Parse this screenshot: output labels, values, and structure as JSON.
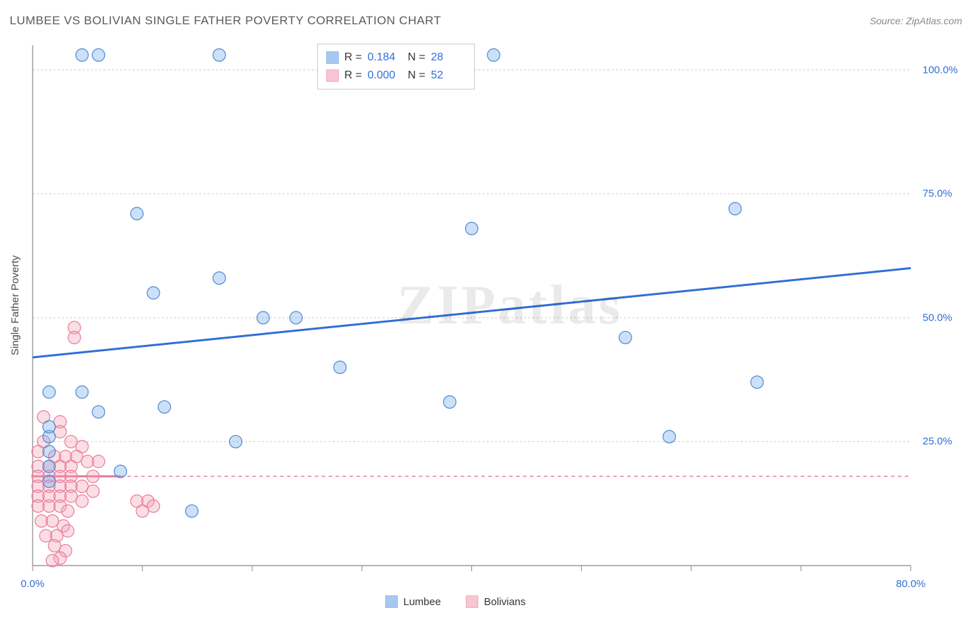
{
  "title": "LUMBEE VS BOLIVIAN SINGLE FATHER POVERTY CORRELATION CHART",
  "source_label": "Source: ZipAtlas.com",
  "y_axis_label": "Single Father Poverty",
  "watermark": "ZIPatlas",
  "chart": {
    "type": "scatter",
    "background_color": "#ffffff",
    "grid_color": "#cccccc",
    "grid_dash": "3,3",
    "axis_color": "#888888",
    "tick_color": "#888888",
    "xlim": [
      0,
      80
    ],
    "ylim": [
      0,
      105
    ],
    "x_ticks": [
      0,
      10,
      20,
      30,
      40,
      50,
      60,
      70,
      80
    ],
    "x_tick_labels": {
      "0": "0.0%",
      "80": "80.0%"
    },
    "y_gridlines": [
      25,
      50,
      75,
      100
    ],
    "y_tick_labels": {
      "25": "25.0%",
      "50": "50.0%",
      "75": "75.0%",
      "100": "100.0%"
    },
    "marker_radius": 9,
    "marker_stroke_width": 1.2,
    "marker_fill_opacity": 0.35,
    "trend_line_width_solid": 3,
    "trend_line_width_dash": 1.5,
    "series": [
      {
        "name": "Lumbee",
        "color": "#6da6e8",
        "stroke": "#4a8ad4",
        "trend_color": "#2f6fd6",
        "R": "0.184",
        "N": "28",
        "trend": {
          "x1": 0,
          "y1": 42,
          "x2": 80,
          "y2": 60,
          "dash": false
        },
        "points": [
          [
            4.5,
            103
          ],
          [
            6,
            103
          ],
          [
            17,
            103
          ],
          [
            42,
            103
          ],
          [
            9.5,
            71
          ],
          [
            40,
            68
          ],
          [
            64,
            72
          ],
          [
            17,
            58
          ],
          [
            11,
            55
          ],
          [
            21,
            50
          ],
          [
            24,
            50
          ],
          [
            54,
            46
          ],
          [
            28,
            40
          ],
          [
            66,
            37
          ],
          [
            1.5,
            35
          ],
          [
            4.5,
            35
          ],
          [
            12,
            32
          ],
          [
            6,
            31
          ],
          [
            1.5,
            26
          ],
          [
            1.5,
            28
          ],
          [
            18.5,
            25
          ],
          [
            58,
            26
          ],
          [
            1.5,
            23
          ],
          [
            1.5,
            20
          ],
          [
            8,
            19
          ],
          [
            1.5,
            17
          ],
          [
            14.5,
            11
          ],
          [
            38,
            33
          ]
        ]
      },
      {
        "name": "Bolivians",
        "color": "#f4a0b5",
        "stroke": "#e87a99",
        "trend_color": "#e87a99",
        "R": "0.000",
        "N": "52",
        "trend": {
          "x1": 0,
          "y1": 18,
          "x2": 80,
          "y2": 18,
          "dash": true,
          "solid_until": 8
        },
        "points": [
          [
            3.8,
            48
          ],
          [
            3.8,
            46
          ],
          [
            1,
            30
          ],
          [
            2.5,
            29
          ],
          [
            2.5,
            27
          ],
          [
            3.5,
            25
          ],
          [
            1,
            25
          ],
          [
            4.5,
            24
          ],
          [
            0.5,
            23
          ],
          [
            2,
            22
          ],
          [
            3,
            22
          ],
          [
            4,
            22
          ],
          [
            0.5,
            20
          ],
          [
            1.5,
            20
          ],
          [
            2.5,
            20
          ],
          [
            3.5,
            20
          ],
          [
            5,
            21
          ],
          [
            6,
            21
          ],
          [
            0.5,
            18
          ],
          [
            1.5,
            18
          ],
          [
            2.5,
            18
          ],
          [
            3.5,
            18
          ],
          [
            5.5,
            18
          ],
          [
            0.5,
            16
          ],
          [
            1.5,
            16
          ],
          [
            2.5,
            16
          ],
          [
            3.5,
            16
          ],
          [
            4.5,
            16
          ],
          [
            5.5,
            15
          ],
          [
            0.5,
            14
          ],
          [
            1.5,
            14
          ],
          [
            2.5,
            14
          ],
          [
            3.5,
            14
          ],
          [
            4.5,
            13
          ],
          [
            0.5,
            12
          ],
          [
            1.5,
            12
          ],
          [
            2.5,
            12
          ],
          [
            3.2,
            11
          ],
          [
            9.5,
            13
          ],
          [
            10.5,
            13
          ],
          [
            10,
            11
          ],
          [
            11,
            12
          ],
          [
            0.8,
            9
          ],
          [
            1.8,
            9
          ],
          [
            2.8,
            8
          ],
          [
            1.2,
            6
          ],
          [
            2.2,
            6
          ],
          [
            3.2,
            7
          ],
          [
            2,
            4
          ],
          [
            3,
            3
          ],
          [
            2.5,
            1.5
          ],
          [
            1.8,
            1
          ]
        ]
      }
    ]
  },
  "stats_box": {
    "r_label": "R =",
    "n_label": "N ="
  },
  "bottom_legend": {
    "lumbee": "Lumbee",
    "bolivians": "Bolivians"
  }
}
